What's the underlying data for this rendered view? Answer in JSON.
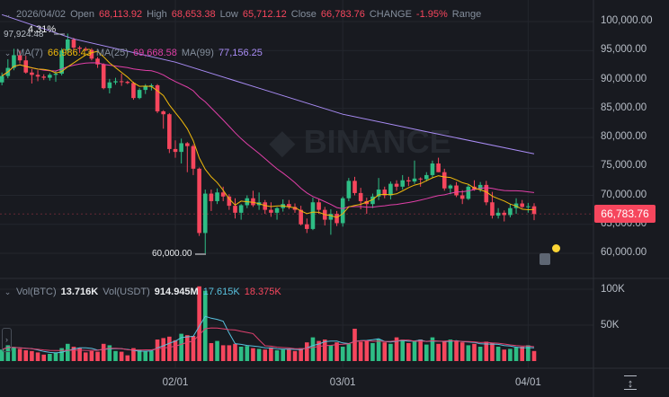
{
  "header": {
    "date": "2026/04/02",
    "open_label": "Open",
    "open": "68,113.92",
    "high_label": "High",
    "high": "68,653.38",
    "low_label": "Low",
    "low": "65,712.12",
    "close_label": "Close",
    "close": "66,783.76",
    "change_label": "CHANGE",
    "change": "-1.95%",
    "range_label": "Range"
  },
  "ma_legend": {
    "ma7_label": "MA(7)",
    "ma7": "66,986.43",
    "ma25_label": "MA(25)",
    "ma25": "69,668.58",
    "ma99_label": "MA(99)",
    "ma99": "77,156.25"
  },
  "vol_legend": {
    "btc_label": "Vol(BTC)",
    "btc": "13.716K",
    "usdt_label": "Vol(USDT)",
    "usdt": "914.945M",
    "ma1": "17.615K",
    "ma2": "18.375K"
  },
  "annotations": {
    "max_label": "97,924.48",
    "min_label": "60,000.00",
    "pct_label": "4.31%"
  },
  "price_tag": "66,783.76",
  "colors": {
    "up": "#2ebd85",
    "down": "#f6465d",
    "ma7": "#f0b90b",
    "ma25": "#e13fa8",
    "ma99": "#a98cf5",
    "vol_ma1": "#58c1de",
    "vol_ma2": "#e1416f",
    "background": "#181a20"
  },
  "watermark": "BINANCE",
  "chart_data": {
    "type": "candlestick",
    "y_ticks": [
      "100,000.00",
      "95,000.00",
      "90,000.00",
      "85,000.00",
      "80,000.00",
      "75,000.00",
      "70,000.00",
      "65,000.00",
      "60,000.00"
    ],
    "ylim": [
      60000,
      100000
    ],
    "vol_ticks": [
      "100K",
      "50K"
    ],
    "vol_ylim": [
      0,
      100
    ],
    "x_ticks": [
      {
        "date": "2026-02-01",
        "label": "02/01"
      },
      {
        "date": "2026-03-01",
        "label": "03/01"
      },
      {
        "date": "2026-04-01",
        "label": "04/01"
      }
    ],
    "grid": true,
    "candle_fields": [
      "date",
      "open",
      "high",
      "low",
      "close",
      "volume_k"
    ],
    "candles": [
      [
        "2026-01-03",
        89500,
        91200,
        89000,
        90600,
        16
      ],
      [
        "2026-01-04",
        90600,
        93500,
        90200,
        92000,
        22
      ],
      [
        "2026-01-05",
        92000,
        95300,
        91600,
        94200,
        19
      ],
      [
        "2026-01-06",
        94200,
        95000,
        92800,
        93300,
        17
      ],
      [
        "2026-01-07",
        93300,
        94100,
        91000,
        91200,
        15
      ],
      [
        "2026-01-08",
        91200,
        91800,
        89300,
        90800,
        14
      ],
      [
        "2026-01-09",
        90800,
        91600,
        89700,
        90500,
        12
      ],
      [
        "2026-01-10",
        90500,
        90900,
        89900,
        90300,
        9
      ],
      [
        "2026-01-11",
        90300,
        91100,
        89800,
        90800,
        10
      ],
      [
        "2026-01-12",
        90800,
        91500,
        89600,
        91000,
        12
      ],
      [
        "2026-01-13",
        91000,
        95400,
        90700,
        95000,
        18
      ],
      [
        "2026-01-14",
        95000,
        97924,
        94500,
        96900,
        24
      ],
      [
        "2026-01-15",
        96900,
        97200,
        95000,
        95500,
        20
      ],
      [
        "2026-01-16",
        95500,
        95800,
        94600,
        95300,
        18
      ],
      [
        "2026-01-17",
        95300,
        95600,
        94900,
        95100,
        12
      ],
      [
        "2026-01-18",
        95100,
        95400,
        93300,
        93600,
        14
      ],
      [
        "2026-01-19",
        93600,
        93900,
        92000,
        92600,
        13
      ],
      [
        "2026-01-20",
        92600,
        92800,
        88300,
        88500,
        24
      ],
      [
        "2026-01-21",
        88500,
        90100,
        87600,
        89500,
        22
      ],
      [
        "2026-01-22",
        89500,
        90300,
        89100,
        89700,
        14
      ],
      [
        "2026-01-23",
        89700,
        91000,
        88900,
        89600,
        13
      ],
      [
        "2026-01-24",
        89600,
        89800,
        89200,
        89400,
        8
      ],
      [
        "2026-01-25",
        89400,
        89600,
        86500,
        86800,
        18
      ],
      [
        "2026-01-26",
        86800,
        88500,
        86600,
        88200,
        16
      ],
      [
        "2026-01-27",
        88200,
        89200,
        87500,
        88800,
        14
      ],
      [
        "2026-01-28",
        88800,
        89300,
        88100,
        89000,
        14
      ],
      [
        "2026-01-29",
        89000,
        89200,
        84200,
        84500,
        30
      ],
      [
        "2026-01-30",
        84500,
        84700,
        81500,
        84000,
        32
      ],
      [
        "2026-01-31",
        84000,
        84200,
        77300,
        78000,
        34
      ],
      [
        "2026-02-01",
        78000,
        79500,
        76500,
        77500,
        29
      ],
      [
        "2026-02-02",
        77500,
        79800,
        75500,
        79000,
        38
      ],
      [
        "2026-02-03",
        79000,
        79200,
        74000,
        78500,
        36
      ],
      [
        "2026-02-04",
        78500,
        78800,
        73500,
        74600,
        35
      ],
      [
        "2026-02-05",
        74600,
        74800,
        63000,
        63500,
        104
      ],
      [
        "2026-02-06",
        63500,
        71000,
        60000,
        70300,
        98
      ],
      [
        "2026-02-07",
        70300,
        71000,
        67300,
        69000,
        25
      ],
      [
        "2026-02-08",
        69000,
        71200,
        68500,
        70500,
        28
      ],
      [
        "2026-02-09",
        70500,
        71500,
        69000,
        69800,
        22
      ],
      [
        "2026-02-10",
        69800,
        70200,
        67500,
        68200,
        22
      ],
      [
        "2026-02-11",
        68200,
        69500,
        66000,
        67000,
        24
      ],
      [
        "2026-02-12",
        67000,
        68500,
        65800,
        68300,
        20
      ],
      [
        "2026-02-13",
        68300,
        70000,
        67800,
        69500,
        21
      ],
      [
        "2026-02-14",
        69500,
        70800,
        68000,
        68300,
        18
      ],
      [
        "2026-02-15",
        68300,
        70500,
        67500,
        68800,
        17
      ],
      [
        "2026-02-16",
        68800,
        69200,
        66800,
        67500,
        16
      ],
      [
        "2026-02-17",
        67500,
        68800,
        66300,
        67000,
        19
      ],
      [
        "2026-02-18",
        67000,
        68000,
        65800,
        67800,
        15
      ],
      [
        "2026-02-19",
        67800,
        69300,
        67200,
        68500,
        16
      ],
      [
        "2026-02-20",
        68500,
        69200,
        67600,
        68000,
        17
      ],
      [
        "2026-02-21",
        68000,
        68600,
        67000,
        67500,
        14
      ],
      [
        "2026-02-22",
        67500,
        68200,
        64800,
        65000,
        18
      ],
      [
        "2026-02-23",
        65000,
        66000,
        63500,
        64200,
        26
      ],
      [
        "2026-02-24",
        64200,
        69600,
        64000,
        68800,
        33
      ],
      [
        "2026-02-25",
        68800,
        69400,
        66800,
        67500,
        28
      ],
      [
        "2026-02-26",
        67500,
        68000,
        64800,
        65800,
        30
      ],
      [
        "2026-02-27",
        65800,
        67600,
        63200,
        66800,
        22
      ],
      [
        "2026-02-28",
        66800,
        67300,
        64700,
        65200,
        26
      ],
      [
        "2026-03-01",
        65200,
        69800,
        64600,
        69500,
        20
      ],
      [
        "2026-03-02",
        69500,
        73000,
        69000,
        72500,
        24
      ],
      [
        "2026-03-03",
        72500,
        73200,
        70000,
        70400,
        45
      ],
      [
        "2026-03-04",
        70400,
        71300,
        67600,
        69000,
        27
      ],
      [
        "2026-03-05",
        69000,
        69600,
        66800,
        68500,
        28
      ],
      [
        "2026-03-06",
        68500,
        70300,
        67800,
        69800,
        25
      ],
      [
        "2026-03-07",
        69800,
        73000,
        69200,
        71000,
        30
      ],
      [
        "2026-03-08",
        71000,
        71500,
        69500,
        70000,
        26
      ],
      [
        "2026-03-09",
        70000,
        72400,
        69300,
        72000,
        24
      ],
      [
        "2026-03-10",
        72000,
        72600,
        70800,
        71500,
        33
      ],
      [
        "2026-03-11",
        71500,
        73500,
        71000,
        72600,
        30
      ],
      [
        "2026-03-12",
        72600,
        73200,
        71600,
        72400,
        25
      ],
      [
        "2026-03-13",
        72400,
        76000,
        72000,
        72900,
        28
      ],
      [
        "2026-03-14",
        72900,
        73100,
        71500,
        72800,
        30
      ],
      [
        "2026-03-15",
        72800,
        74000,
        72400,
        73500,
        23
      ],
      [
        "2026-03-16",
        73500,
        76000,
        73000,
        75500,
        33
      ],
      [
        "2026-03-17",
        75500,
        76500,
        74000,
        74000,
        24
      ],
      [
        "2026-03-18",
        74000,
        74600,
        70800,
        71200,
        27
      ],
      [
        "2026-03-19",
        71200,
        71900,
        70200,
        71700,
        30
      ],
      [
        "2026-03-20",
        71700,
        72300,
        69700,
        70000,
        28
      ],
      [
        "2026-03-21",
        70000,
        70900,
        68500,
        69400,
        26
      ],
      [
        "2026-03-22",
        69400,
        71900,
        69200,
        71500,
        22
      ],
      [
        "2026-03-23",
        71500,
        72600,
        70800,
        71000,
        24
      ],
      [
        "2026-03-24",
        71000,
        72300,
        70600,
        71800,
        20
      ],
      [
        "2026-03-25",
        71800,
        72500,
        68300,
        68800,
        27
      ],
      [
        "2026-03-26",
        68800,
        70600,
        66000,
        66500,
        25
      ],
      [
        "2026-03-27",
        66500,
        67800,
        66000,
        67000,
        20
      ],
      [
        "2026-03-28",
        67000,
        67400,
        65500,
        66600,
        16
      ],
      [
        "2026-03-29",
        66600,
        68500,
        66200,
        67800,
        17
      ],
      [
        "2026-03-30",
        67800,
        69500,
        66800,
        68600,
        19
      ],
      [
        "2026-03-31",
        68600,
        69200,
        67800,
        68000,
        20
      ],
      [
        "2026-04-01",
        68000,
        68700,
        67000,
        68114,
        22
      ],
      [
        "2026-04-02",
        68114,
        68653,
        65712,
        66784,
        14
      ]
    ],
    "ma99_points": [
      [
        "2026-01-03",
        101200
      ],
      [
        "2026-01-15",
        97000
      ],
      [
        "2026-02-01",
        93000
      ],
      [
        "2026-02-15",
        88500
      ],
      [
        "2026-03-01",
        84000
      ],
      [
        "2026-03-15",
        81000
      ],
      [
        "2026-04-02",
        77156
      ]
    ]
  }
}
